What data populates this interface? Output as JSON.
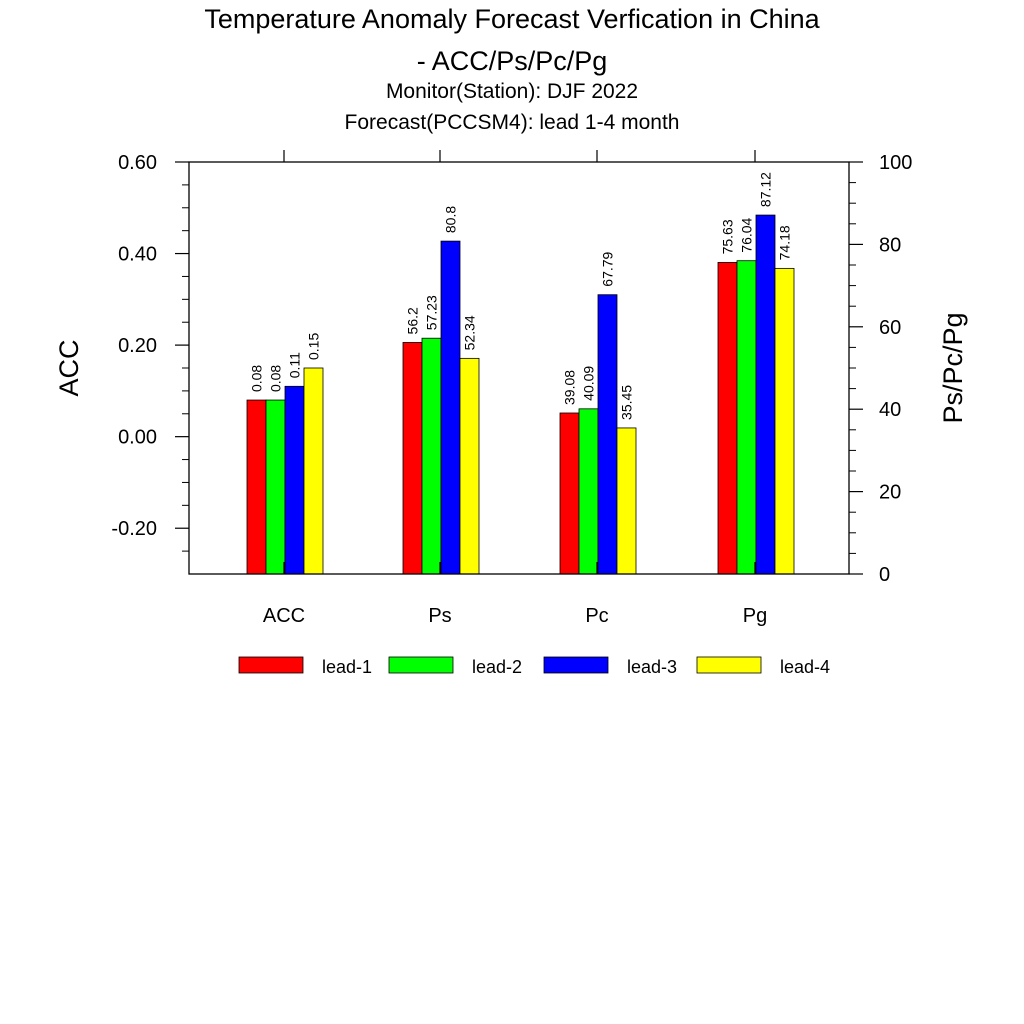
{
  "chart_data": {
    "type": "bar",
    "title_lines": [
      "Temperature Anomaly Forecast Verfication in China",
      "- ACC/Ps/Pc/Pg"
    ],
    "subtitle_lines": [
      "Monitor(Station): DJF 2022",
      "Forecast(PCCSM4): lead 1-4 month"
    ],
    "categories": [
      "ACC",
      "Ps",
      "Pc",
      "Pg"
    ],
    "y_left": {
      "label": "ACC",
      "range": [
        -0.3,
        0.6
      ],
      "ticks": [
        -0.2,
        0.0,
        0.2,
        0.4,
        0.6
      ],
      "tick_labels": [
        "-0.20",
        "0.00",
        "0.20",
        "0.40",
        "0.60"
      ]
    },
    "y_right": {
      "label": "Ps/Pc/Pg",
      "range": [
        0,
        100
      ],
      "ticks": [
        0,
        20,
        40,
        60,
        80,
        100
      ],
      "tick_labels": [
        "0",
        "20",
        "40",
        "60",
        "80",
        "100"
      ]
    },
    "series": [
      {
        "name": "lead-1",
        "color": "#ff0000",
        "values": [
          0.08,
          56.2,
          39.08,
          75.63
        ],
        "labels": [
          "0.08",
          "56.2",
          "39.08",
          "75.63"
        ]
      },
      {
        "name": "lead-2",
        "color": "#00ff00",
        "values": [
          0.08,
          57.23,
          40.09,
          76.04
        ],
        "labels": [
          "0.08",
          "57.23",
          "40.09",
          "76.04"
        ]
      },
      {
        "name": "lead-3",
        "color": "#0000ff",
        "values": [
          0.11,
          80.8,
          67.79,
          87.12
        ],
        "labels": [
          "0.11",
          "80.8",
          "67.79",
          "87.12"
        ]
      },
      {
        "name": "lead-4",
        "color": "#ffff00",
        "values": [
          0.15,
          52.34,
          35.45,
          74.18
        ],
        "labels": [
          "0.15",
          "52.34",
          "35.45",
          "74.18"
        ]
      }
    ],
    "grid": false,
    "legend_position": "bottom"
  }
}
